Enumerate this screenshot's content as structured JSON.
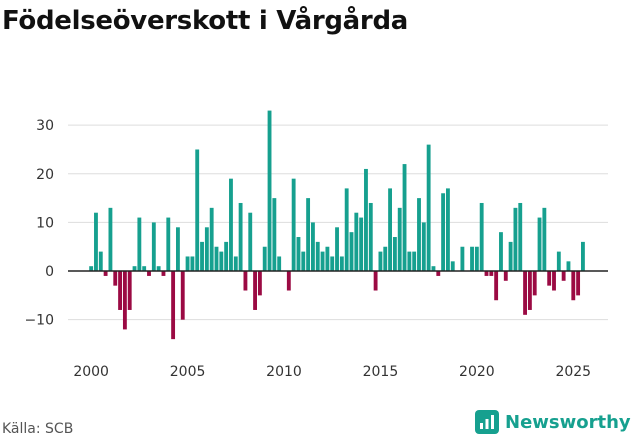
{
  "title": "Födelseöverskott i Vårgårda",
  "source": "Källa: SCB",
  "brand": "Newsworthy",
  "colors": {
    "positive": "#16a08f",
    "negative": "#9b0a43",
    "brand": "#16a08f"
  },
  "chart_data": {
    "type": "bar",
    "title": "Födelseöverskott i Vårgårda",
    "xlabel": "",
    "ylabel": "",
    "xlim": [
      1998.8,
      2026.8
    ],
    "ylim": [
      -15,
      36
    ],
    "x_ticks": [
      2000,
      2005,
      2010,
      2015,
      2020,
      2025
    ],
    "y_ticks": [
      -10,
      0,
      10,
      20,
      30
    ],
    "grid": true,
    "series": [
      {
        "name": "Födelseöverskott",
        "note": "quarterly values, starting 2000 Q1",
        "x_start": 2000,
        "step": 0.25,
        "values": [
          1,
          12,
          4,
          -1,
          13,
          -3,
          -8,
          -12,
          -8,
          1,
          11,
          1,
          -1,
          10,
          1,
          -1,
          11,
          -14,
          9,
          -10,
          3,
          3,
          25,
          6,
          9,
          13,
          5,
          4,
          6,
          19,
          3,
          14,
          -4,
          12,
          -8,
          -5,
          5,
          33,
          15,
          3,
          0,
          -4,
          19,
          7,
          4,
          15,
          10,
          6,
          4,
          5,
          3,
          9,
          3,
          17,
          8,
          12,
          11,
          21,
          14,
          -4,
          4,
          5,
          17,
          7,
          13,
          22,
          4,
          4,
          15,
          10,
          26,
          1,
          -1,
          16,
          17,
          2,
          0,
          5,
          0,
          5,
          5,
          14,
          -1,
          -1,
          -6,
          8,
          -2,
          6,
          13,
          14,
          -9,
          -8,
          -5,
          11,
          13,
          -3,
          -4,
          4,
          -2,
          2,
          -6,
          -5,
          6
        ]
      }
    ]
  }
}
